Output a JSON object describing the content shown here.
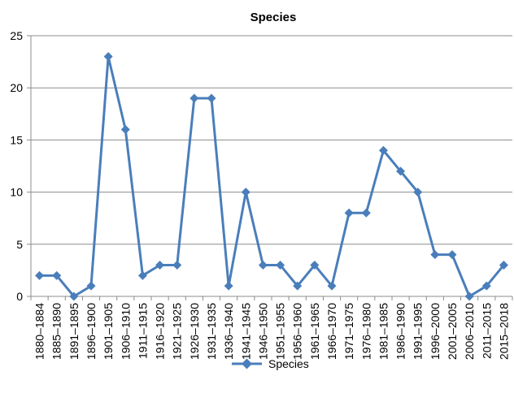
{
  "chart_data": {
    "type": "line",
    "title": "Species",
    "xlabel": "",
    "ylabel": "",
    "ylim": [
      0,
      25
    ],
    "yticks": [
      0,
      5,
      10,
      15,
      20,
      25
    ],
    "grid": "horizontal",
    "legend_position": "bottom",
    "categories": [
      "1880–1884",
      "1885–1890",
      "1891–1895",
      "1896–1900",
      "1901–1905",
      "1906–1910",
      "1911–1915",
      "1916–1920",
      "1921–1925",
      "1926–1930",
      "1931–1935",
      "1936–1940",
      "1941–1945",
      "1946–1950",
      "1951–1955",
      "1956–1960",
      "1961–1965",
      "1966–1970",
      "1971–1975",
      "1976–1980",
      "1981–1985",
      "1986–1990",
      "1991–1995",
      "1996–2000",
      "2001–2005",
      "2006–2010",
      "2011–2015",
      "2015–2018"
    ],
    "series": [
      {
        "name": "Species",
        "color": "#4a7ebb",
        "marker": "diamond",
        "values": [
          2,
          2,
          0,
          1,
          23,
          16,
          2,
          3,
          3,
          19,
          19,
          1,
          10,
          3,
          3,
          1,
          3,
          1,
          8,
          8,
          14,
          12,
          10,
          4,
          4,
          0,
          1,
          3
        ]
      }
    ]
  }
}
